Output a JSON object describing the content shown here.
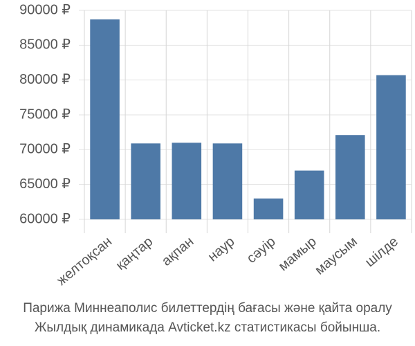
{
  "chart_data": {
    "type": "bar",
    "categories": [
      "желтоқсан",
      "қаңтар",
      "ақпан",
      "наур",
      "сәуір",
      "мамыр",
      "маусым",
      "шілде"
    ],
    "values": [
      88700,
      70900,
      71000,
      70900,
      63000,
      67000,
      72100,
      80700
    ],
    "color": "#4e79a7",
    "ylim": [
      60000,
      90000
    ],
    "yticks": [
      {
        "value": 60000,
        "label": "60000 ₽"
      },
      {
        "value": 65000,
        "label": "65000 ₽"
      },
      {
        "value": 70000,
        "label": "70000 ₽"
      },
      {
        "value": 75000,
        "label": "75000 ₽"
      },
      {
        "value": 80000,
        "label": "80000 ₽"
      },
      {
        "value": 85000,
        "label": "85000 ₽"
      },
      {
        "value": 90000,
        "label": "90000 ₽"
      }
    ],
    "grid": true,
    "caption": [
      "Парижа Миннеаполис билеттердің бағасы және қайта оралу",
      "Жылдық динамикада Avticket.kz статистикасы бойынша."
    ]
  }
}
